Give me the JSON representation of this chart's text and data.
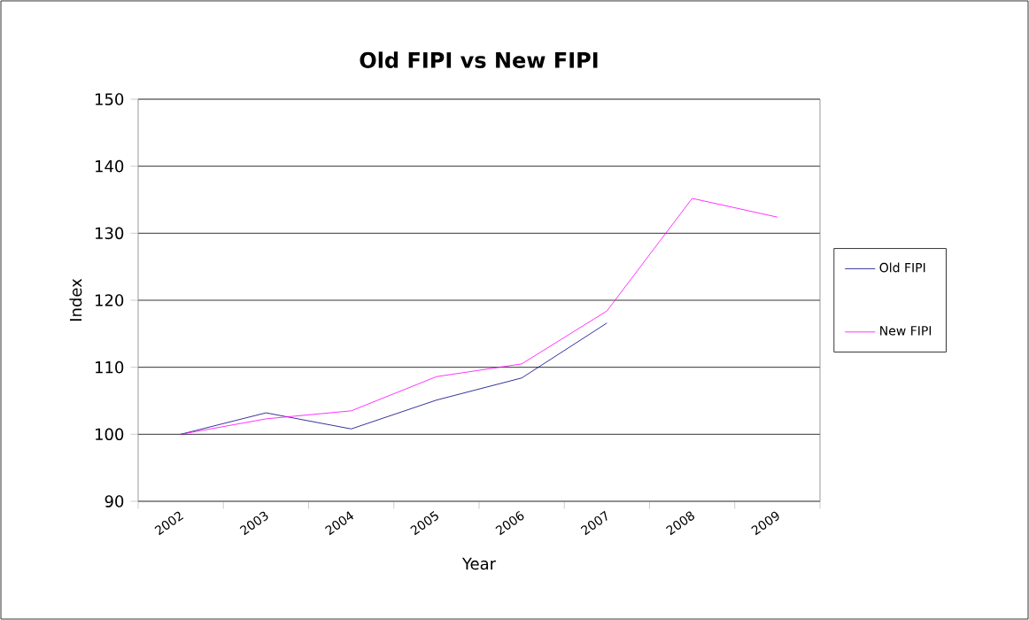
{
  "chart_data": {
    "type": "line",
    "title": "Old FIPI vs New FIPI",
    "xlabel": "Year",
    "ylabel": "Index",
    "categories": [
      "2002",
      "2003",
      "2004",
      "2005",
      "2006",
      "2007",
      "2008",
      "2009"
    ],
    "series": [
      {
        "name": "Old FIPI",
        "color": "#000080",
        "values": [
          100,
          103.2,
          100.8,
          105.1,
          108.4,
          116.6,
          null,
          null
        ]
      },
      {
        "name": "New FIPI",
        "color": "#ff00ff",
        "values": [
          100,
          102.3,
          103.5,
          108.6,
          110.5,
          118.4,
          135.2,
          132.4
        ]
      }
    ],
    "ylim": [
      90,
      150
    ],
    "yticks": [
      90,
      100,
      110,
      120,
      130,
      140,
      150
    ],
    "grid": "y",
    "legend": "right",
    "marker": "none",
    "line_style": "solid"
  }
}
